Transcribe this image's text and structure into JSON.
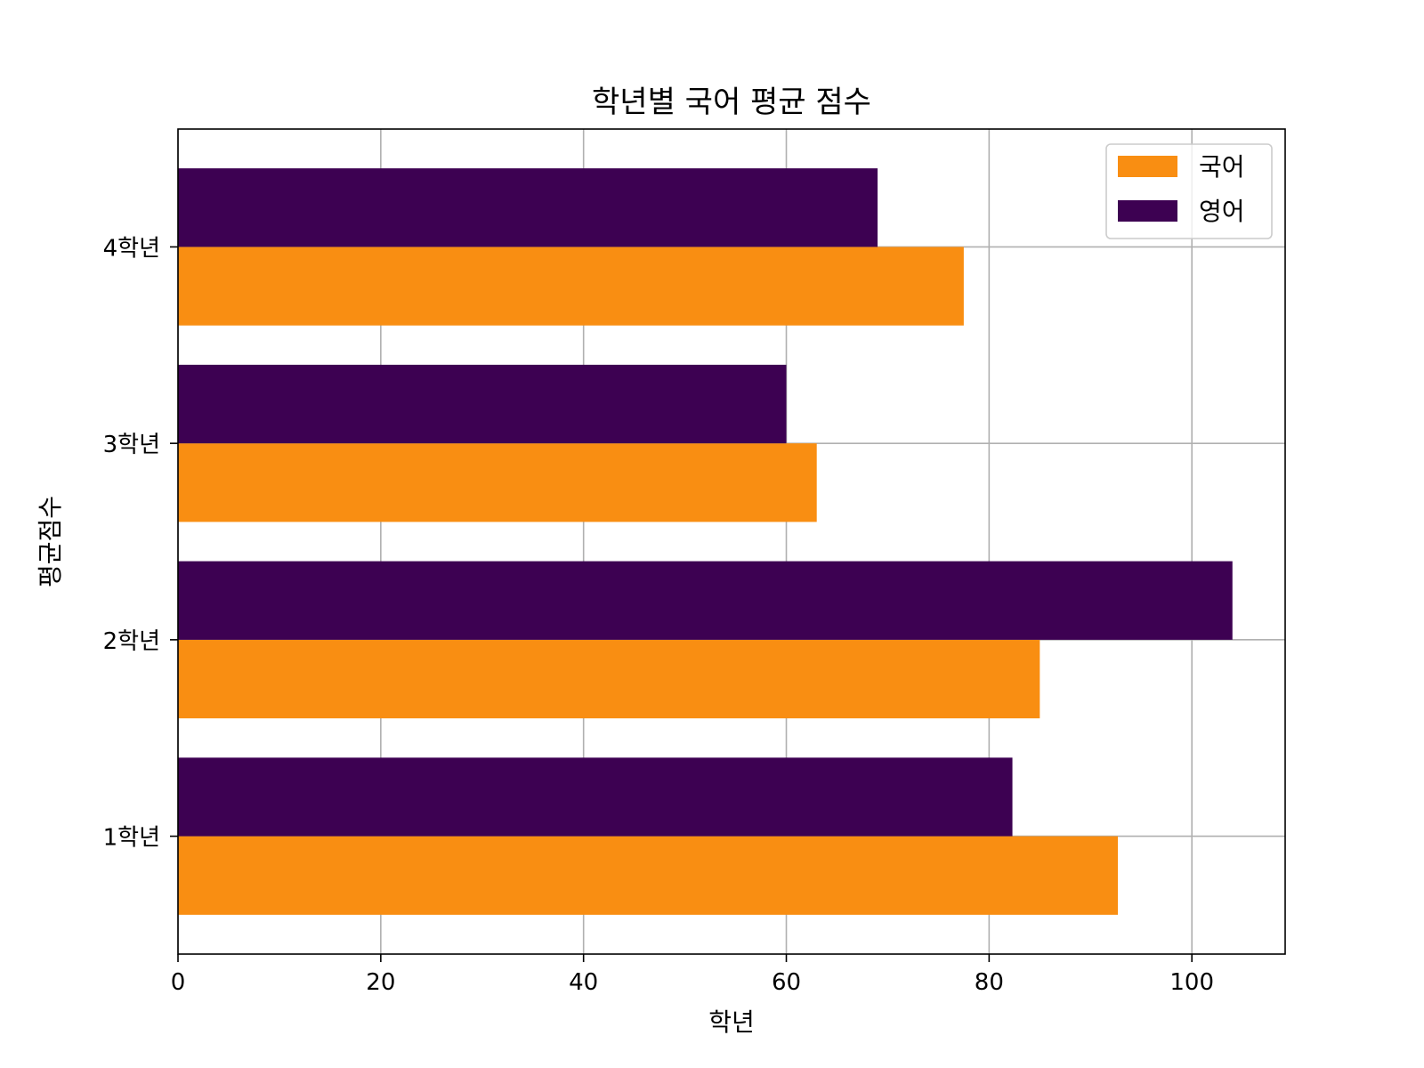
{
  "chart_data": {
    "type": "bar",
    "orientation": "horizontal",
    "title": "학년별 국어 평균 점수",
    "xlabel": "학년",
    "ylabel": "평균점수",
    "categories": [
      "1학년",
      "2학년",
      "3학년",
      "4학년"
    ],
    "series": [
      {
        "name": "국어",
        "values": [
          92.7,
          85.0,
          63.0,
          77.5
        ],
        "color": "#f98e12"
      },
      {
        "name": "영어",
        "values": [
          82.3,
          104.0,
          60.0,
          69.0
        ],
        "color": "#3d0152"
      }
    ],
    "xlim": [
      0,
      109.2
    ],
    "xticks": [
      0,
      20,
      40,
      60,
      80,
      100
    ],
    "grid": true,
    "legend_position": "top-right"
  }
}
